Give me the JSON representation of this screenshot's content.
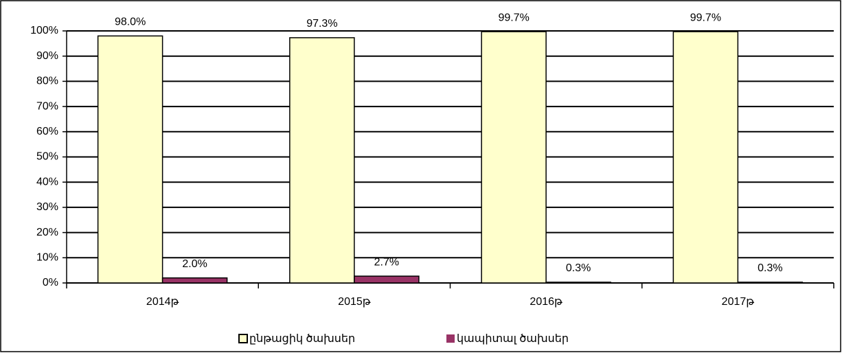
{
  "chart_data": {
    "type": "bar",
    "categories": [
      "2014թ",
      "2015թ",
      "2016թ",
      "2017թ"
    ],
    "series": [
      {
        "name": "ընթացիկ ծախսեր",
        "color": "#FFFFCC",
        "values": [
          98.0,
          97.3,
          99.7,
          99.7
        ],
        "value_labels": [
          "98.0%",
          "97.3%",
          "99.7%",
          "99.7%"
        ]
      },
      {
        "name": "կապիտալ ծախսեր",
        "color": "#993366",
        "values": [
          2.0,
          2.7,
          0.3,
          0.3
        ],
        "value_labels": [
          "2.0%",
          "2.7%",
          "0.3%",
          "0.3%"
        ]
      }
    ],
    "ylim": [
      0,
      100
    ],
    "yticks": [
      {
        "value": 0,
        "label": "0%"
      },
      {
        "value": 10,
        "label": "10%"
      },
      {
        "value": 20,
        "label": "20%"
      },
      {
        "value": 30,
        "label": "30%"
      },
      {
        "value": 40,
        "label": "40%"
      },
      {
        "value": 50,
        "label": "50%"
      },
      {
        "value": 60,
        "label": "60%"
      },
      {
        "value": 70,
        "label": "70%"
      },
      {
        "value": 80,
        "label": "80%"
      },
      {
        "value": 90,
        "label": "90%"
      },
      {
        "value": 100,
        "label": "100%"
      }
    ],
    "grid": true,
    "legend": "bottom"
  }
}
